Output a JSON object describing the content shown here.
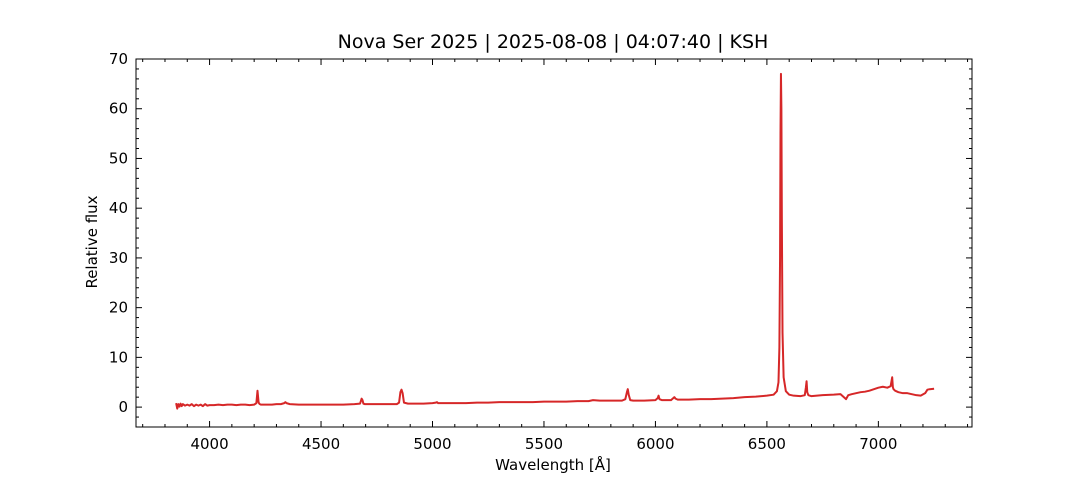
{
  "chart_data": {
    "type": "line",
    "title": "Nova Ser 2025 | 2025-08-08 | 04:07:40 | KSH",
    "xlabel": "Wavelength [Å]",
    "ylabel": "Relative flux",
    "xlim": [
      3670,
      7420
    ],
    "ylim": [
      -4,
      70
    ],
    "xticks": [
      4000,
      4500,
      5000,
      5500,
      6000,
      6500,
      7000
    ],
    "yticks": [
      0,
      10,
      20,
      30,
      40,
      50,
      60,
      70
    ],
    "grid": false,
    "legend": false,
    "series": [
      {
        "color": "#d62728",
        "x": [
          3850,
          3855,
          3860,
          3865,
          3870,
          3875,
          3880,
          3890,
          3900,
          3910,
          3920,
          3930,
          3940,
          3950,
          3960,
          3970,
          3980,
          3990,
          4000,
          4020,
          4040,
          4060,
          4080,
          4100,
          4120,
          4140,
          4160,
          4180,
          4200,
          4210,
          4215,
          4220,
          4225,
          4230,
          4250,
          4280,
          4300,
          4320,
          4335,
          4340,
          4345,
          4360,
          4400,
          4450,
          4500,
          4550,
          4600,
          4650,
          4675,
          4682,
          4686,
          4690,
          4697,
          4720,
          4760,
          4800,
          4840,
          4850,
          4856,
          4861,
          4866,
          4872,
          4890,
          4920,
          4960,
          5000,
          5015,
          5020,
          5025,
          5050,
          5100,
          5150,
          5200,
          5250,
          5300,
          5350,
          5400,
          5450,
          5500,
          5550,
          5600,
          5650,
          5700,
          5720,
          5750,
          5800,
          5850,
          5865,
          5872,
          5876,
          5880,
          5887,
          5900,
          5950,
          6000,
          6010,
          6014,
          6018,
          6030,
          6070,
          6080,
          6085,
          6090,
          6100,
          6150,
          6200,
          6250,
          6300,
          6350,
          6400,
          6450,
          6500,
          6530,
          6545,
          6552,
          6556,
          6559,
          6561,
          6563,
          6565,
          6567,
          6570,
          6575,
          6585,
          6600,
          6620,
          6650,
          6670,
          6675,
          6678,
          6681,
          6686,
          6700,
          6750,
          6800,
          6830,
          6845,
          6855,
          6865,
          6880,
          6900,
          6920,
          6940,
          6960,
          6980,
          7000,
          7020,
          7040,
          7055,
          7062,
          7065,
          7068,
          7075,
          7090,
          7110,
          7130,
          7150,
          7170,
          7190,
          7210,
          7220,
          7230,
          7250
        ],
        "y": [
          0.8,
          -0.3,
          0.6,
          0.1,
          0.7,
          0.2,
          0.6,
          0.3,
          0.5,
          0.3,
          0.6,
          0.2,
          0.5,
          0.3,
          0.5,
          0.2,
          0.6,
          0.3,
          0.4,
          0.4,
          0.5,
          0.4,
          0.5,
          0.5,
          0.4,
          0.5,
          0.5,
          0.4,
          0.5,
          0.8,
          3.3,
          0.9,
          0.6,
          0.5,
          0.5,
          0.5,
          0.6,
          0.6,
          0.8,
          1.0,
          0.8,
          0.6,
          0.5,
          0.5,
          0.5,
          0.5,
          0.5,
          0.6,
          0.7,
          1.7,
          1.4,
          0.7,
          0.6,
          0.6,
          0.6,
          0.6,
          0.6,
          0.9,
          3.0,
          3.5,
          2.8,
          0.9,
          0.7,
          0.7,
          0.7,
          0.8,
          0.9,
          1.0,
          0.8,
          0.8,
          0.8,
          0.8,
          0.9,
          0.9,
          1.0,
          1.0,
          1.0,
          1.0,
          1.1,
          1.1,
          1.1,
          1.2,
          1.2,
          1.4,
          1.3,
          1.3,
          1.3,
          1.6,
          3.0,
          3.6,
          2.5,
          1.4,
          1.3,
          1.3,
          1.4,
          1.8,
          2.3,
          1.6,
          1.4,
          1.4,
          1.8,
          2.0,
          1.7,
          1.5,
          1.5,
          1.6,
          1.6,
          1.7,
          1.8,
          2.0,
          2.1,
          2.3,
          2.5,
          3.2,
          5.0,
          12.0,
          30.0,
          55.0,
          67.0,
          60.0,
          38.0,
          15.0,
          6.0,
          3.2,
          2.5,
          2.3,
          2.2,
          2.4,
          4.0,
          5.2,
          3.0,
          2.4,
          2.2,
          2.4,
          2.5,
          2.6,
          2.0,
          1.6,
          2.4,
          2.6,
          2.8,
          3.0,
          3.1,
          3.3,
          3.6,
          3.9,
          4.1,
          3.9,
          4.2,
          6.0,
          4.0,
          3.6,
          3.3,
          3.0,
          2.8,
          2.8,
          2.6,
          2.4,
          2.3,
          2.8,
          3.5,
          3.6,
          3.7
        ]
      }
    ]
  }
}
